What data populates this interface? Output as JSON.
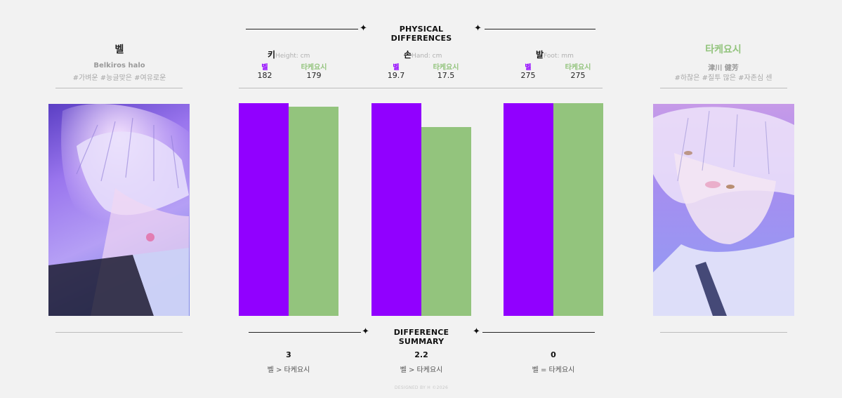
{
  "header": {
    "title": "PHYSICAL DIFFERENCES",
    "star": "✦"
  },
  "colors": {
    "bell": "#9100ff",
    "takeyoshi": "#93c47d"
  },
  "left_character": {
    "name": "벨",
    "subtitle": "Belkiros halo",
    "tags": "#가벼운 #능글맞은 #여유로운"
  },
  "right_character": {
    "name": "타케요시",
    "subtitle": "津川 健芳",
    "tags": "#하찮은 #질투 많은 #자존심 센"
  },
  "chart_data": {
    "type": "bar",
    "categories": [
      "키",
      "손",
      "발"
    ],
    "units": [
      "Height: cm",
      "Hand: cm",
      "Foot: mm"
    ],
    "series": [
      {
        "name": "벨",
        "values": [
          182,
          19.7,
          275
        ]
      },
      {
        "name": "타케요시",
        "values": [
          179,
          17.5,
          275
        ]
      }
    ]
  },
  "metrics": [
    {
      "title": "키",
      "unit": "Height: cm",
      "a_label": "벨",
      "b_label": "타케요시",
      "a_value": "182",
      "b_value": "179"
    },
    {
      "title": "손",
      "unit": "Hand: cm",
      "a_label": "벨",
      "b_label": "타케요시",
      "a_value": "19.7",
      "b_value": "17.5"
    },
    {
      "title": "발",
      "unit": "Foot: mm",
      "a_label": "벨",
      "b_label": "타케요시",
      "a_value": "275",
      "b_value": "275"
    }
  ],
  "summary": {
    "title": "DIFFERENCE SUMMARY",
    "items": [
      {
        "value": "3",
        "relation": "벨 > 타케요시"
      },
      {
        "value": "2.2",
        "relation": "벨 > 타케요시"
      },
      {
        "value": "0",
        "relation": "벨 = 타케요시"
      }
    ]
  },
  "footer": {
    "credit": "DESIGNED BY H ©2026"
  }
}
